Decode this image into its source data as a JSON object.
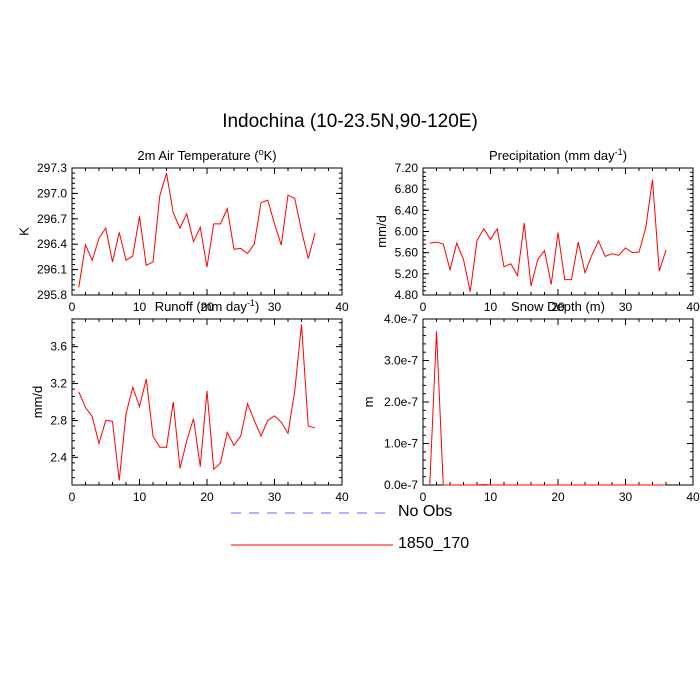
{
  "title": "Indochina (10-23.5N,90-120E)",
  "legend": [
    {
      "name": "No Obs",
      "color": "#6666ff",
      "dash": true
    },
    {
      "name": "1850_170",
      "color": "#ff0000",
      "dash": false
    }
  ],
  "chart_data": [
    {
      "type": "line",
      "title_main": "2m Air Temperature (",
      "title_sup": "o",
      "title_end": "K)",
      "ylabel": "K",
      "xlim": [
        0,
        40
      ],
      "ylim": [
        295.8,
        297.3
      ],
      "xticks": [
        "0",
        "10",
        "20",
        "30",
        "40"
      ],
      "yticks": [
        "295.8",
        "296.1",
        "296.4",
        "296.7",
        "297.0",
        "297.3"
      ],
      "yticks_values": [
        295.8,
        296.1,
        296.4,
        296.7,
        297.0,
        297.3
      ],
      "series": [
        {
          "name": "1850_170",
          "color": "#ff0000",
          "x": [
            1,
            2,
            3,
            4,
            5,
            6,
            7,
            8,
            9,
            10,
            11,
            12,
            13,
            14,
            15,
            16,
            17,
            18,
            19,
            20,
            21,
            22,
            23,
            24,
            25,
            26,
            27,
            28,
            29,
            30,
            31,
            32,
            33,
            34,
            35,
            36
          ],
          "values": [
            295.89,
            296.39,
            296.21,
            296.47,
            296.59,
            296.19,
            296.54,
            296.21,
            296.26,
            296.73,
            296.15,
            296.19,
            296.97,
            297.24,
            296.77,
            296.59,
            296.76,
            296.43,
            296.6,
            296.13,
            296.64,
            296.64,
            296.82,
            296.34,
            296.35,
            296.29,
            296.4,
            296.89,
            296.92,
            296.64,
            296.39,
            296.98,
            296.94,
            296.56,
            296.23,
            296.53
          ]
        }
      ]
    },
    {
      "type": "line",
      "title_main": "Precipitation (mm day",
      "title_sup": "-1",
      "title_end": ")",
      "ylabel": "mm/d",
      "xlim": [
        0,
        40
      ],
      "ylim": [
        4.8,
        7.2
      ],
      "xticks": [
        "0",
        "10",
        "20",
        "30",
        "40"
      ],
      "yticks": [
        "4.80",
        "5.20",
        "5.60",
        "6.00",
        "6.40",
        "6.80",
        "7.20"
      ],
      "yticks_values": [
        4.8,
        5.2,
        5.6,
        6.0,
        6.4,
        6.8,
        7.2
      ],
      "series": [
        {
          "name": "1850_170",
          "color": "#ff0000",
          "x": [
            1,
            2,
            3,
            4,
            5,
            6,
            7,
            8,
            9,
            10,
            11,
            12,
            13,
            14,
            15,
            16,
            17,
            18,
            19,
            20,
            21,
            22,
            23,
            24,
            25,
            26,
            27,
            28,
            29,
            30,
            31,
            32,
            33,
            34,
            35,
            36
          ],
          "values": [
            5.78,
            5.8,
            5.76,
            5.28,
            5.78,
            5.47,
            4.86,
            5.83,
            6.05,
            5.85,
            6.05,
            5.33,
            5.39,
            5.17,
            6.16,
            4.97,
            5.47,
            5.64,
            5.0,
            5.98,
            5.09,
            5.09,
            5.8,
            5.22,
            5.55,
            5.82,
            5.53,
            5.58,
            5.55,
            5.69,
            5.6,
            5.61,
            6.07,
            6.98,
            5.25,
            5.65
          ]
        }
      ]
    },
    {
      "type": "line",
      "title_main": "Runoff (mm day",
      "title_sup": "-1",
      "title_end": ")",
      "ylabel": "mm/d",
      "xlim": [
        0,
        40
      ],
      "ylim": [
        2.1,
        3.9
      ],
      "xticks": [
        "0",
        "10",
        "20",
        "30",
        "40"
      ],
      "yticks": [
        "2.4",
        "2.8",
        "3.2",
        "3.6"
      ],
      "yticks_values": [
        2.4,
        2.8,
        3.2,
        3.6
      ],
      "series": [
        {
          "name": "1850_170",
          "color": "#ff0000",
          "x": [
            1,
            2,
            3,
            4,
            5,
            6,
            7,
            8,
            9,
            10,
            11,
            12,
            13,
            14,
            15,
            16,
            17,
            18,
            19,
            20,
            21,
            22,
            23,
            24,
            25,
            26,
            27,
            28,
            29,
            30,
            31,
            32,
            33,
            34,
            35,
            36
          ],
          "values": [
            3.11,
            2.94,
            2.84,
            2.55,
            2.8,
            2.79,
            2.15,
            2.87,
            3.16,
            2.95,
            3.25,
            2.63,
            2.51,
            2.51,
            3.0,
            2.28,
            2.58,
            2.82,
            2.3,
            3.12,
            2.27,
            2.34,
            2.67,
            2.53,
            2.63,
            2.98,
            2.8,
            2.63,
            2.8,
            2.85,
            2.78,
            2.66,
            3.12,
            3.84,
            2.74,
            2.72
          ]
        }
      ]
    },
    {
      "type": "line",
      "title_main": "Snow Depth (m)",
      "title_sup": "",
      "title_end": "",
      "ylabel": "m",
      "xlim": [
        0,
        40
      ],
      "ylim": [
        0,
        4e-07
      ],
      "xticks": [
        "0",
        "10",
        "20",
        "30",
        "40"
      ],
      "yticks": [
        "0.0e-7",
        "1.0e-7",
        "2.0e-7",
        "3.0e-7",
        "4.0e-7"
      ],
      "yticks_values": [
        0,
        1e-07,
        2e-07,
        3e-07,
        4e-07
      ],
      "series": [
        {
          "name": "1850_170",
          "color": "#ff0000",
          "x": [
            1,
            2,
            3,
            4,
            5,
            6,
            7,
            8,
            9,
            10,
            11,
            12,
            13,
            14,
            15,
            16,
            17,
            18,
            19,
            20,
            21,
            22,
            23,
            24,
            25,
            26,
            27,
            28,
            29,
            30,
            31,
            32,
            33,
            34,
            35,
            36
          ],
          "values": [
            0,
            3.7e-07,
            0,
            0,
            0,
            0,
            0,
            0,
            1e-09,
            0,
            0,
            0,
            0,
            0,
            0,
            0,
            0,
            0,
            0,
            0,
            0,
            0,
            0,
            0,
            0,
            0,
            0,
            0,
            0,
            0,
            0,
            0,
            0,
            0,
            0,
            0
          ]
        }
      ]
    }
  ]
}
